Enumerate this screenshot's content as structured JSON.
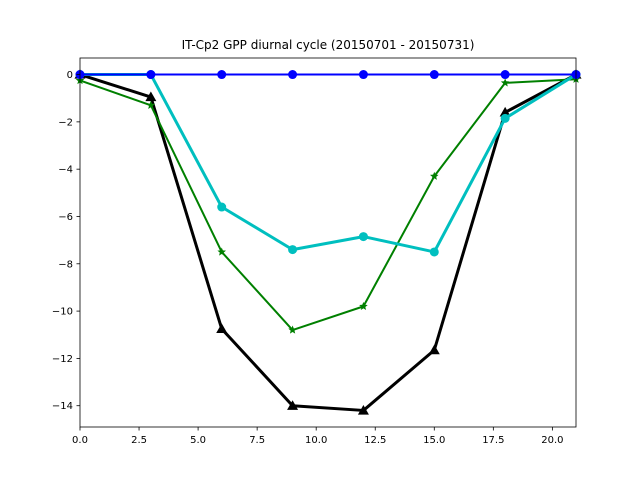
{
  "chart_data": {
    "type": "line",
    "title": "IT-Cp2 GPP diurnal cycle (20150701 - 20150731)",
    "xlabel": "",
    "ylabel": "",
    "xlim": [
      0,
      21
    ],
    "ylim": [
      -14.9,
      0.7
    ],
    "x_ticks": [
      0,
      2.5,
      5,
      7.5,
      10,
      12.5,
      15,
      17.5,
      20
    ],
    "x_tick_labels": [
      "0.0",
      "2.5",
      "5.0",
      "7.5",
      "10.0",
      "12.5",
      "15.0",
      "17.5",
      "20.0"
    ],
    "y_ticks": [
      0,
      -2,
      -4,
      -6,
      -8,
      -10,
      -12,
      -14
    ],
    "y_tick_labels": [
      "0",
      "−2",
      "−4",
      "−6",
      "−8",
      "−10",
      "−12",
      "−14"
    ],
    "grid": false,
    "legend": "none",
    "x": [
      0,
      3,
      6,
      9,
      12,
      15,
      18,
      21
    ],
    "series": [
      {
        "color": "#000000",
        "marker": "triangle",
        "line_width": 3,
        "values": [
          0,
          -0.95,
          -10.75,
          -14.0,
          -14.2,
          -11.65,
          -1.6,
          0
        ]
      },
      {
        "color": "#008000",
        "marker": "star",
        "line_width": 2,
        "values": [
          -0.25,
          -1.3,
          -7.5,
          -10.8,
          -9.8,
          -4.3,
          -0.35,
          -0.2
        ]
      },
      {
        "color": "#00bfbf",
        "marker": "circle",
        "line_width": 3,
        "values": [
          0,
          0,
          -5.6,
          -7.4,
          -6.85,
          -7.5,
          -1.85,
          0
        ]
      },
      {
        "color": "#0000ff",
        "marker": "circle",
        "line_width": 2,
        "values": [
          0,
          0,
          0,
          0,
          0,
          0,
          0,
          0
        ]
      }
    ]
  }
}
